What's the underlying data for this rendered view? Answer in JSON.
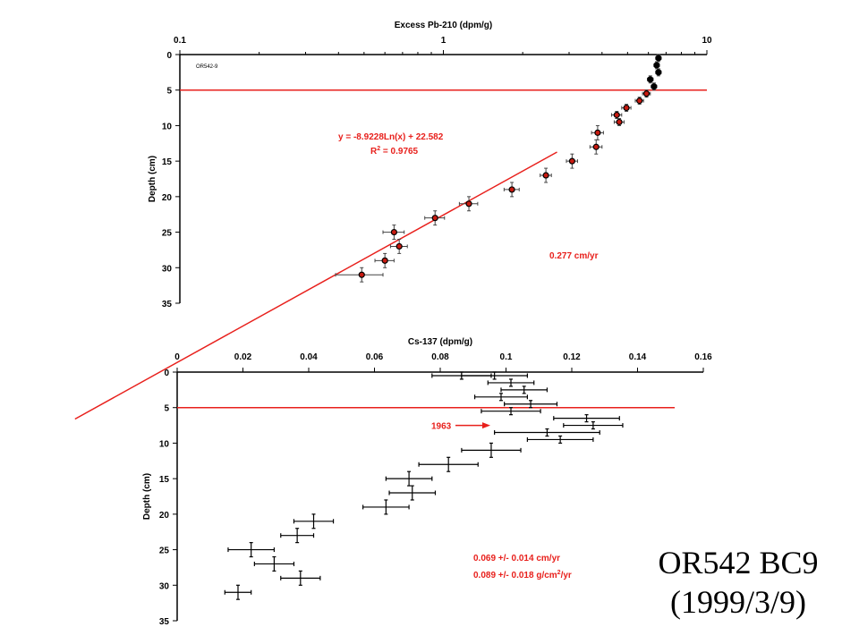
{
  "caption": {
    "line1": "OR542 BC9",
    "line2": "(1999/3/9)"
  },
  "colors": {
    "axis": "#000000",
    "red": "#e8201c",
    "marker_fill": "#c81a10",
    "marker_edge": "#000000"
  },
  "chart_data": [
    {
      "id": "pb210",
      "type": "scatter",
      "title": "Excess Pb-210 (dpm/g)",
      "xlabel": "",
      "ylabel": "Depth (cm)",
      "x_scale": "log",
      "xlim": [
        0.1,
        10
      ],
      "ylim": [
        0,
        35
      ],
      "y_inverted": true,
      "x_ticks": [
        "0.1",
        "1",
        "10"
      ],
      "y_ticks": [
        "0",
        "5",
        "10",
        "15",
        "20",
        "25",
        "30",
        "35"
      ],
      "grid": false,
      "inset_label": "OR542-9",
      "surface_mixed_layer_depth": 5,
      "fit": {
        "equation": "y = -8.9228Ln(x) + 22.582",
        "r2_label": "R",
        "r2_sup": "2",
        "r2_value": " = 0.9765",
        "slope": -8.9228,
        "intercept": 22.582,
        "x_range": [
          0.04,
          2.7
        ]
      },
      "rate_label": "0.277 cm/yr",
      "points_surface": [
        {
          "x": 6.55,
          "y": 0.5,
          "xerr": 0.15,
          "yerr": 0.5
        },
        {
          "x": 6.45,
          "y": 1.5,
          "xerr": 0.15,
          "yerr": 0.5
        },
        {
          "x": 6.55,
          "y": 2.5,
          "xerr": 0.15,
          "yerr": 0.5
        },
        {
          "x": 6.1,
          "y": 3.5,
          "xerr": 0.15,
          "yerr": 0.5
        },
        {
          "x": 6.3,
          "y": 4.5,
          "xerr": 0.15,
          "yerr": 0.5
        }
      ],
      "points": [
        {
          "x": 5.9,
          "y": 5.5,
          "xerr": 0.2,
          "yerr": 0.5
        },
        {
          "x": 5.55,
          "y": 6.5,
          "xerr": 0.2,
          "yerr": 0.5
        },
        {
          "x": 4.95,
          "y": 7.5,
          "xerr": 0.2,
          "yerr": 0.5
        },
        {
          "x": 4.55,
          "y": 8.5,
          "xerr": 0.2,
          "yerr": 0.5
        },
        {
          "x": 4.65,
          "y": 9.5,
          "xerr": 0.2,
          "yerr": 0.5
        },
        {
          "x": 3.85,
          "y": 11,
          "xerr": 0.2,
          "yerr": 1
        },
        {
          "x": 3.8,
          "y": 13,
          "xerr": 0.2,
          "yerr": 1
        },
        {
          "x": 3.08,
          "y": 15,
          "xerr": 0.15,
          "yerr": 1
        },
        {
          "x": 2.45,
          "y": 17,
          "xerr": 0.12,
          "yerr": 1
        },
        {
          "x": 1.82,
          "y": 19,
          "xerr": 0.12,
          "yerr": 1
        },
        {
          "x": 1.25,
          "y": 21,
          "xerr": 0.1,
          "yerr": 1
        },
        {
          "x": 0.93,
          "y": 23,
          "xerr": 0.08,
          "yerr": 1
        },
        {
          "x": 0.65,
          "y": 25,
          "xerr": 0.06,
          "yerr": 1
        },
        {
          "x": 0.68,
          "y": 27,
          "xerr": 0.05,
          "yerr": 1
        },
        {
          "x": 0.6,
          "y": 29,
          "xerr": 0.05,
          "yerr": 1
        },
        {
          "x": 0.49,
          "y": 31,
          "xerr": 0.1,
          "yerr": 1
        }
      ]
    },
    {
      "id": "cs137",
      "type": "scatter",
      "title": "Cs-137 (dpm/g)",
      "xlabel": "",
      "ylabel": "Depth (cm)",
      "xlim": [
        0,
        0.16
      ],
      "ylim": [
        0,
        35
      ],
      "y_inverted": true,
      "x_ticks": [
        "0",
        "0.02",
        "0.04",
        "0.06",
        "0.08",
        "0.1",
        "0.12",
        "0.14",
        "0.16"
      ],
      "y_ticks": [
        "0",
        "5",
        "10",
        "15",
        "20",
        "25",
        "30",
        "35"
      ],
      "grid": false,
      "surface_mixed_layer_depth": 5,
      "marker_1963_label": "1963",
      "marker_1963_depth": 7.5,
      "rate_line1": "0.069 +/- 0.014 cm/yr",
      "rate_line2_pre": "0.089 +/- 0.018 g/cm",
      "rate_line2_sup": "2",
      "rate_line2_post": "/yr",
      "points": [
        {
          "x": 0.0865,
          "y": 0.5,
          "xerr": 0.009,
          "yerr": 0.5
        },
        {
          "x": 0.0965,
          "y": 0.5,
          "xerr": 0.01,
          "yerr": 0.5
        },
        {
          "x": 0.1015,
          "y": 1.5,
          "xerr": 0.007,
          "yerr": 0.5
        },
        {
          "x": 0.1055,
          "y": 2.5,
          "xerr": 0.007,
          "yerr": 0.5
        },
        {
          "x": 0.0985,
          "y": 3.5,
          "xerr": 0.008,
          "yerr": 0.5
        },
        {
          "x": 0.1075,
          "y": 4.5,
          "xerr": 0.008,
          "yerr": 0.5
        },
        {
          "x": 0.1015,
          "y": 5.5,
          "xerr": 0.009,
          "yerr": 0.5
        },
        {
          "x": 0.1245,
          "y": 6.5,
          "xerr": 0.01,
          "yerr": 0.5
        },
        {
          "x": 0.1265,
          "y": 7.5,
          "xerr": 0.009,
          "yerr": 0.5
        },
        {
          "x": 0.1125,
          "y": 8.5,
          "xerr": 0.016,
          "yerr": 0.5
        },
        {
          "x": 0.1165,
          "y": 9.5,
          "xerr": 0.01,
          "yerr": 0.5
        },
        {
          "x": 0.0955,
          "y": 11,
          "xerr": 0.009,
          "yerr": 1
        },
        {
          "x": 0.0825,
          "y": 13,
          "xerr": 0.009,
          "yerr": 1
        },
        {
          "x": 0.0705,
          "y": 15,
          "xerr": 0.007,
          "yerr": 1
        },
        {
          "x": 0.0715,
          "y": 17,
          "xerr": 0.007,
          "yerr": 1
        },
        {
          "x": 0.0635,
          "y": 19,
          "xerr": 0.007,
          "yerr": 1
        },
        {
          "x": 0.0415,
          "y": 21,
          "xerr": 0.006,
          "yerr": 1
        },
        {
          "x": 0.0365,
          "y": 23,
          "xerr": 0.005,
          "yerr": 1
        },
        {
          "x": 0.0225,
          "y": 25,
          "xerr": 0.007,
          "yerr": 1
        },
        {
          "x": 0.0295,
          "y": 27,
          "xerr": 0.006,
          "yerr": 1
        },
        {
          "x": 0.0375,
          "y": 29,
          "xerr": 0.006,
          "yerr": 1
        },
        {
          "x": 0.0185,
          "y": 31,
          "xerr": 0.004,
          "yerr": 1
        }
      ]
    }
  ]
}
